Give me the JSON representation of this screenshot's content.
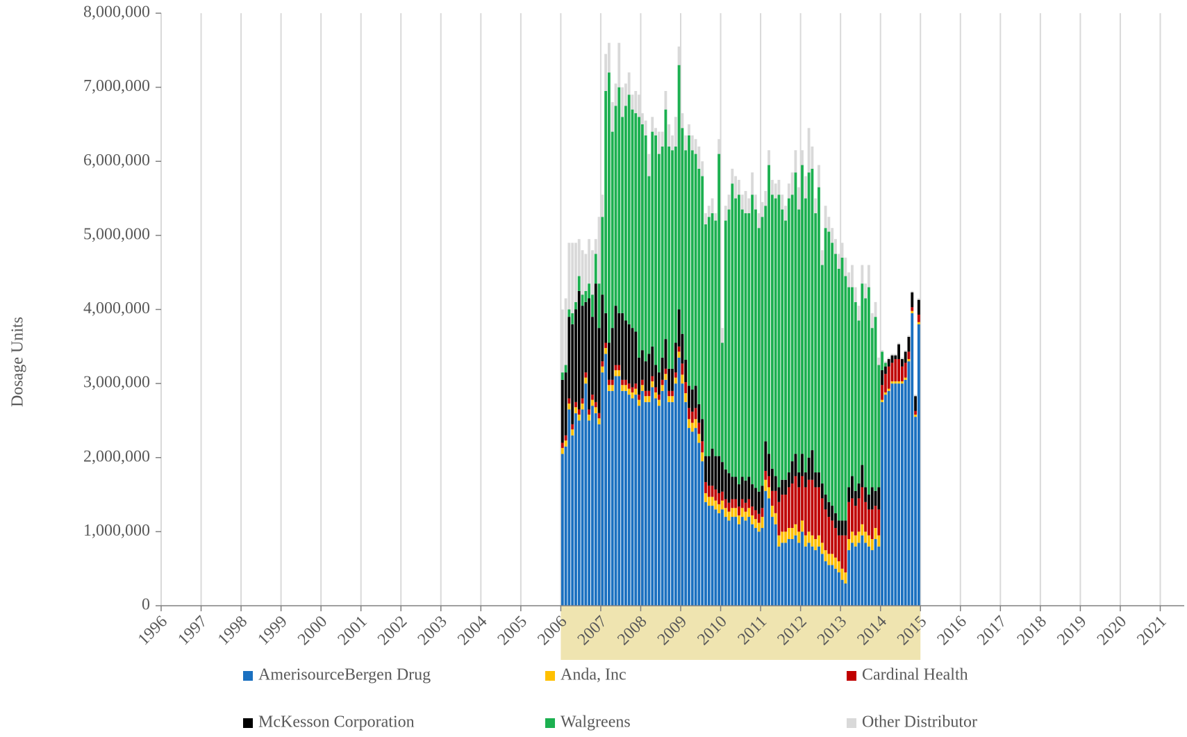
{
  "chart_data": {
    "type": "stacked_bar",
    "y_label": "Dosage Units",
    "xlim": [
      1996,
      2021.6
    ],
    "xticks": [
      1996,
      1997,
      1998,
      1999,
      2000,
      2001,
      2002,
      2003,
      2004,
      2005,
      2006,
      2007,
      2008,
      2009,
      2010,
      2011,
      2012,
      2013,
      2014,
      2015,
      2016,
      2017,
      2018,
      2019,
      2020,
      2021
    ],
    "ylim": [
      0,
      8000000
    ],
    "yticks": [
      0,
      {
        "value": 1000000,
        "label": "1,000,000"
      },
      {
        "value": 2000000,
        "label": "2,000,000"
      },
      {
        "value": 3000000,
        "label": "3,000,000"
      },
      {
        "value": 4000000,
        "label": "4,000,000"
      },
      {
        "value": 5000000,
        "label": "5,000,000"
      },
      {
        "value": 6000000,
        "label": "6,000,000"
      },
      {
        "value": 7000000,
        "label": "7,000,000"
      },
      {
        "value": 8000000,
        "label": "8,000,000"
      }
    ],
    "xgrid": true,
    "highlight_range": [
      2006,
      2015
    ],
    "highlight_color": "#efe4b0",
    "x": [
      2006.042,
      2006.125,
      2006.208,
      2006.292,
      2006.375,
      2006.458,
      2006.542,
      2006.625,
      2006.708,
      2006.792,
      2006.875,
      2006.958,
      2007.042,
      2007.125,
      2007.208,
      2007.292,
      2007.375,
      2007.458,
      2007.542,
      2007.625,
      2007.708,
      2007.792,
      2007.875,
      2007.958,
      2008.042,
      2008.125,
      2008.208,
      2008.292,
      2008.375,
      2008.458,
      2008.542,
      2008.625,
      2008.708,
      2008.792,
      2008.875,
      2008.958,
      2009.042,
      2009.125,
      2009.208,
      2009.292,
      2009.375,
      2009.458,
      2009.542,
      2009.625,
      2009.708,
      2009.792,
      2009.875,
      2009.958,
      2010.042,
      2010.125,
      2010.208,
      2010.292,
      2010.375,
      2010.458,
      2010.542,
      2010.625,
      2010.708,
      2010.792,
      2010.875,
      2010.958,
      2011.042,
      2011.125,
      2011.208,
      2011.292,
      2011.375,
      2011.458,
      2011.542,
      2011.625,
      2011.708,
      2011.792,
      2011.875,
      2011.958,
      2012.042,
      2012.125,
      2012.208,
      2012.292,
      2012.375,
      2012.458,
      2012.542,
      2012.625,
      2012.708,
      2012.792,
      2012.875,
      2012.958,
      2013.042,
      2013.125,
      2013.208,
      2013.292,
      2013.375,
      2013.458,
      2013.542,
      2013.625,
      2013.708,
      2013.792,
      2013.875,
      2013.958,
      2014.042,
      2014.125,
      2014.208,
      2014.292,
      2014.375,
      2014.458,
      2014.542,
      2014.625,
      2014.708,
      2014.792,
      2014.875,
      2014.958
    ],
    "series": [
      {
        "name": "AmerisourceBergen Drug",
        "color": "#1a70c0",
        "values": [
          2050000.0,
          2150000.0,
          2650000.0,
          2300000.0,
          2600000.0,
          2500000.0,
          2650000.0,
          3000000.0,
          2500000.0,
          2700000.0,
          2600000.0,
          2450000.0,
          3150000.0,
          3400000.0,
          2900000.0,
          2900000.0,
          3100000.0,
          3100000.0,
          2900000.0,
          2900000.0,
          2850000.0,
          2800000.0,
          2850000.0,
          2700000.0,
          2900000.0,
          2750000.0,
          2750000.0,
          2950000.0,
          2800000.0,
          2700000.0,
          2900000.0,
          3050000.0,
          2750000.0,
          2750000.0,
          3000000.0,
          3350000.0,
          3000000.0,
          2750000.0,
          2400000.0,
          2350000.0,
          2400000.0,
          2200000.0,
          1950000.0,
          1400000.0,
          1350000.0,
          1350000.0,
          1300000.0,
          1250000.0,
          1300000.0,
          1200000.0,
          1150000.0,
          1200000.0,
          1200000.0,
          1100000.0,
          1200000.0,
          1150000.0,
          1200000.0,
          1100000.0,
          1050000.0,
          1000000.0,
          1050000.0,
          1550000.0,
          1450000.0,
          1200000.0,
          1100000.0,
          800000.0,
          850000.0,
          850000.0,
          900000.0,
          900000.0,
          950000.0,
          850000.0,
          1000000.0,
          800000.0,
          850000.0,
          800000.0,
          750000.0,
          800000.0,
          700000.0,
          600000.0,
          550000.0,
          550000.0,
          500000.0,
          450000.0,
          350000.0,
          300000.0,
          750000.0,
          850000.0,
          800000.0,
          850000.0,
          950000.0,
          850000.0,
          800000.0,
          750000.0,
          900000.0,
          800000.0,
          2750000.0,
          2850000.0,
          2900000.0,
          3000000.0,
          3000000.0,
          3000000.0,
          3000000.0,
          3050000.0,
          3300000.0,
          3950000.0,
          2550000.0,
          3800000.0
        ]
      },
      {
        "name": "Anda, Inc",
        "color": "#ffc000",
        "values": [
          80000,
          80000,
          80000,
          80000,
          80000,
          80000,
          80000,
          80000,
          80000,
          80000,
          80000,
          80000,
          80000,
          80000,
          80000,
          80000,
          80000,
          80000,
          80000,
          80000,
          80000,
          80000,
          80000,
          80000,
          80000,
          80000,
          80000,
          80000,
          80000,
          80000,
          80000,
          80000,
          80000,
          80000,
          80000,
          80000,
          120000,
          120000,
          120000,
          120000,
          120000,
          120000,
          120000,
          120000,
          120000,
          120000,
          120000,
          120000,
          120000,
          120000,
          120000,
          120000,
          120000,
          120000,
          120000,
          120000,
          120000,
          120000,
          120000,
          120000,
          150000,
          150000,
          150000,
          150000,
          150000,
          150000,
          150000,
          150000,
          150000,
          150000,
          150000,
          150000,
          150000,
          150000,
          150000,
          150000,
          150000,
          150000,
          150000,
          150000,
          150000,
          150000,
          150000,
          150000,
          150000,
          150000,
          150000,
          150000,
          150000,
          150000,
          150000,
          150000,
          150000,
          150000,
          150000,
          150000,
          30000,
          30000,
          30000,
          30000,
          30000,
          30000,
          30000,
          30000,
          30000,
          30000,
          30000,
          30000
        ]
      },
      {
        "name": "Cardinal Health",
        "color": "#c00000",
        "values": [
          70000,
          70000,
          70000,
          70000,
          70000,
          70000,
          70000,
          70000,
          70000,
          70000,
          70000,
          70000,
          70000,
          70000,
          70000,
          70000,
          70000,
          70000,
          70000,
          70000,
          70000,
          70000,
          70000,
          70000,
          70000,
          70000,
          70000,
          70000,
          70000,
          70000,
          70000,
          70000,
          70000,
          70000,
          70000,
          70000,
          150000,
          150000,
          150000,
          150000,
          150000,
          150000,
          150000,
          150000,
          150000,
          150000,
          150000,
          150000,
          120000,
          120000,
          120000,
          120000,
          120000,
          120000,
          120000,
          120000,
          120000,
          120000,
          120000,
          120000,
          120000,
          120000,
          150000,
          200000,
          300000,
          450000,
          500000,
          500000,
          550000,
          600000,
          650000,
          600000,
          600000,
          650000,
          700000,
          750000,
          700000,
          650000,
          600000,
          550000,
          500000,
          450000,
          400000,
          350000,
          450000,
          500000,
          500000,
          450000,
          400000,
          450000,
          500000,
          400000,
          350000,
          400000,
          300000,
          350000,
          200000,
          250000,
          300000,
          250000,
          300000,
          300000,
          200000,
          200000,
          100000,
          50000,
          50000,
          100000
        ]
      },
      {
        "name": "McKesson Corporation",
        "color": "#000000",
        "values": [
          850000.0,
          850000.0,
          1100000.0,
          1350000.0,
          1250000.0,
          1600000.0,
          1250000.0,
          950000.0,
          1500000.0,
          1050000.0,
          1600000.0,
          1150000.0,
          900000.0,
          400000.0,
          500000.0,
          700000.0,
          800000.0,
          700000.0,
          900000.0,
          800000.0,
          800000.0,
          800000.0,
          700000.0,
          500000.0,
          400000.0,
          400000.0,
          500000.0,
          400000.0,
          300000.0,
          300000.0,
          300000.0,
          400000.0,
          300000.0,
          300000.0,
          400000.0,
          500000.0,
          400000.0,
          300000.0,
          300000.0,
          300000.0,
          300000.0,
          250000.0,
          300000.0,
          350000.0,
          400000.0,
          500000.0,
          450000.0,
          500000.0,
          400000.0,
          400000.0,
          400000.0,
          300000.0,
          300000.0,
          300000.0,
          300000.0,
          300000.0,
          300000.0,
          300000.0,
          300000.0,
          300000.0,
          300000.0,
          400000.0,
          300000.0,
          300000.0,
          200000.0,
          200000.0,
          200000.0,
          200000.0,
          200000.0,
          300000.0,
          300000.0,
          200000.0,
          300000.0,
          200000.0,
          300000.0,
          400000.0,
          200000.0,
          200000.0,
          200000.0,
          200000.0,
          200000.0,
          200000.0,
          200000.0,
          200000.0,
          200000.0,
          200000.0,
          200000.0,
          300000.0,
          200000.0,
          200000.0,
          300000.0,
          200000.0,
          200000.0,
          300000.0,
          200000.0,
          300000.0,
          200000.0,
          100000.0,
          100000.0,
          100000.0,
          50000.0,
          200000.0,
          100000.0,
          150000.0,
          200000.0,
          200000.0,
          200000.0,
          200000.0
        ]
      },
      {
        "name": "Walgreens",
        "color": "#1cb050",
        "values": [
          100000.0,
          100000.0,
          100000.0,
          150000.0,
          100000.0,
          200000.0,
          150000.0,
          150000.0,
          200000.0,
          300000.0,
          400000.0,
          600000.0,
          1050000.0,
          3000000.0,
          3650000.0,
          2650000.0,
          2700000.0,
          3050000.0,
          2650000.0,
          2900000.0,
          3100000.0,
          2950000.0,
          2950000.0,
          3250000.0,
          3050000.0,
          3050000.0,
          2400000.0,
          2900000.0,
          3100000.0,
          2950000.0,
          2850000.0,
          3100000.0,
          3000000.0,
          2950000.0,
          2650000.0,
          3300000.0,
          2780000.0,
          2830000.0,
          3380000.0,
          3230000.0,
          3130000.0,
          3180000.0,
          3280000.0,
          3130000.0,
          3230000.0,
          3180000.0,
          3180000.0,
          4080000.0,
          1610000.0,
          3360000.0,
          3560000.0,
          3960000.0,
          3760000.0,
          3910000.0,
          3610000.0,
          3610000.0,
          3560000.0,
          3910000.0,
          3760000.0,
          3560000.0,
          3630000.0,
          3180000.0,
          3900000.0,
          3700000.0,
          3750000.0,
          3950000.0,
          3650000.0,
          3500000.0,
          3700000.0,
          3600000.0,
          3800000.0,
          3550000.0,
          3900000.0,
          3700000.0,
          3850000.0,
          3800000.0,
          3500000.0,
          3850000.0,
          2950000.0,
          3600000.0,
          3650000.0,
          3550000.0,
          3500000.0,
          3400000.0,
          3550000.0,
          3300000.0,
          2700000.0,
          2550000.0,
          2550000.0,
          2200000.0,
          2450000.0,
          2550000.0,
          2800000.0,
          2150000.0,
          2350000.0,
          1650000.0,
          250000.0,
          50000.0,
          0,
          0,
          0,
          0,
          0,
          0,
          0,
          0,
          0,
          0
        ]
      },
      {
        "name": "Other Distributor",
        "color": "#d9d9d9",
        "values": [
          850000.0,
          900000.0,
          900000.0,
          950000.0,
          800000.0,
          500000.0,
          600000.0,
          500000.0,
          600000.0,
          600000.0,
          200000.0,
          900000.0,
          300000.0,
          500000.0,
          400000.0,
          400000.0,
          300000.0,
          600000.0,
          400000.0,
          300000.0,
          300000.0,
          200000.0,
          300000.0,
          300000.0,
          150000.0,
          200000.0,
          300000.0,
          200000.0,
          100000.0,
          300000.0,
          200000.0,
          250000.0,
          300000.0,
          200000.0,
          400000.0,
          250000.0,
          200000.0,
          200000.0,
          150000.0,
          200000.0,
          200000.0,
          300000.0,
          200000.0,
          150000.0,
          150000.0,
          200000.0,
          100000.0,
          200000.0,
          200000.0,
          200000.0,
          200000.0,
          200000.0,
          300000.0,
          200000.0,
          200000.0,
          300000.0,
          200000.0,
          300000.0,
          200000.0,
          200000.0,
          200000.0,
          200000.0,
          200000.0,
          200000.0,
          200000.0,
          200000.0,
          200000.0,
          200000.0,
          200000.0,
          300000.0,
          300000.0,
          300000.0,
          200000.0,
          300000.0,
          600000.0,
          300000.0,
          200000.0,
          300000.0,
          200000.0,
          300000.0,
          200000.0,
          200000.0,
          200000.0,
          200000.0,
          200000.0,
          250000.0,
          200000.0,
          300000.0,
          200000.0,
          200000.0,
          250000.0,
          200000.0,
          300000.0,
          200000.0,
          200000.0,
          100000.0,
          20000,
          20000,
          20000,
          20000,
          20000,
          20000,
          20000,
          20000,
          20000,
          20000,
          20000,
          20000
        ]
      }
    ]
  }
}
